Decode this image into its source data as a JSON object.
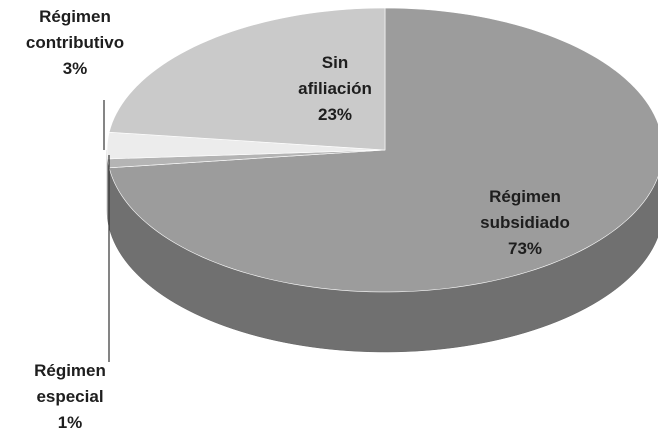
{
  "chart_data": {
    "type": "pie",
    "categories": [
      "Régimen subsidiado",
      "Régimen especial",
      "Régimen contributivo",
      "Sin afiliación"
    ],
    "values": [
      73,
      1,
      3,
      23
    ],
    "value_labels": [
      "73%",
      "1%",
      "3%",
      "23%"
    ],
    "colors": [
      "#9c9c9c",
      "#b4b4b4",
      "#ececec",
      "#cacaca"
    ]
  }
}
